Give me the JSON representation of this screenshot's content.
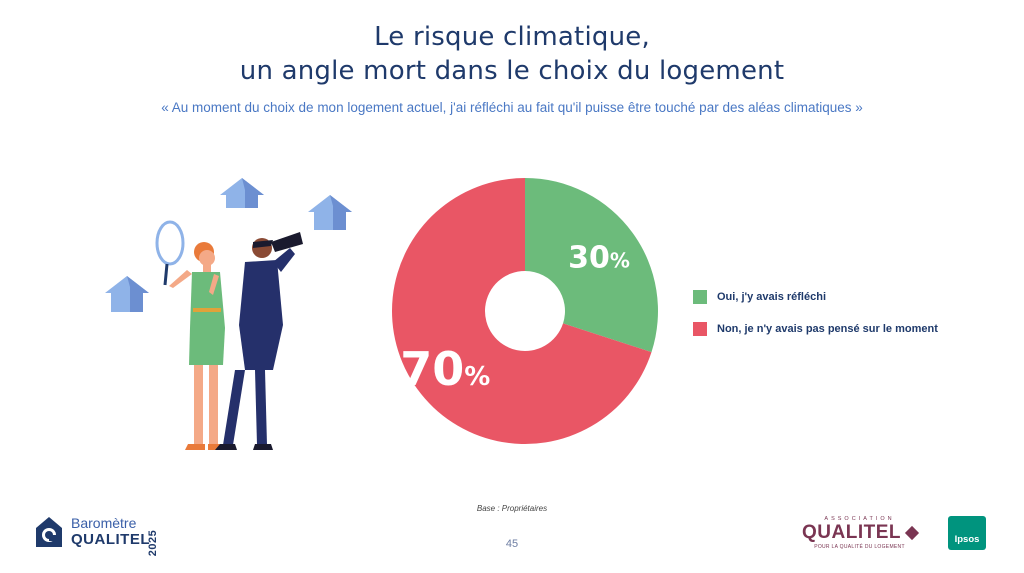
{
  "header": {
    "title_line1": "Le risque climatique,",
    "title_line2": "un angle mort dans le choix du logement",
    "subtitle": "« Au moment du choix de mon logement actuel, j'ai réfléchi au fait qu'il puisse être touché par des aléas climatiques »"
  },
  "chart_data": {
    "type": "pie",
    "donut": true,
    "title": "",
    "labels": [
      "Oui, j'y avais réfléchi",
      "Non, je n'y avais pas pensé sur le moment"
    ],
    "values": [
      30,
      70
    ],
    "unit": "%",
    "colors": [
      "#6cbb7b",
      "#e95665"
    ],
    "legend_position": "right"
  },
  "footer": {
    "base_note": "Base : Propriétaires",
    "page_number": "45",
    "brand_line1": "Baromètre",
    "brand_line2": "QUALITEL",
    "brand_year": "2025",
    "assoc_small": "ASSOCIATION",
    "assoc_name": "QUALITEL",
    "assoc_tagline": "POUR LA QUALITÉ DU LOGEMENT",
    "ipsos": "Ipsos"
  },
  "colors": {
    "title": "#1f3a6b",
    "subtitle": "#4a78c4",
    "house": "#8fb3e8"
  }
}
